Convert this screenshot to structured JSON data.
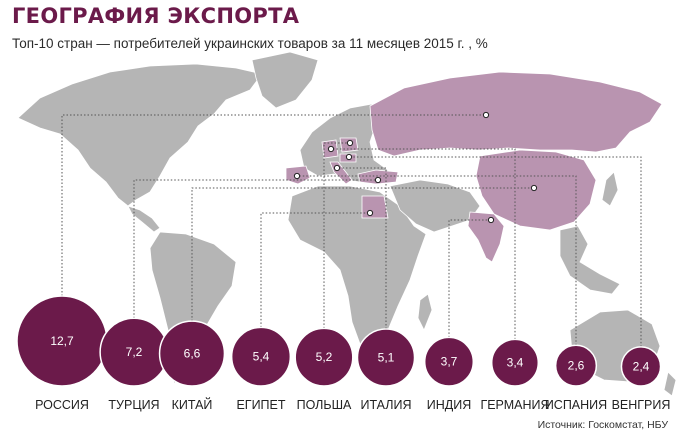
{
  "header": {
    "title": "ГЕОГРАФИЯ ЭКСПОРТА",
    "subtitle": "Топ-10 стран — потребителей украинских товаров за 11 месяцев 2015 г. , %"
  },
  "footer": {
    "source": "Источник: Госкомстат, НБУ"
  },
  "colors": {
    "bubble": "#6b1a4a",
    "land": "#b5b5b5",
    "land_highlight": "#b994b0",
    "leader_line": "#555555"
  },
  "chart_data": {
    "type": "bubble-map",
    "unit": "%",
    "categories": [
      "РОССИЯ",
      "ТУРЦИЯ",
      "КИТАЙ",
      "ЕГИПЕТ",
      "ПОЛЬША",
      "ИТАЛИЯ",
      "ИНДИЯ",
      "ГЕРМАНИЯ",
      "ИСПАНИЯ",
      "ВЕНГРИЯ"
    ],
    "values": [
      12.7,
      7.2,
      6.6,
      5.4,
      5.2,
      5.1,
      3.7,
      3.4,
      2.6,
      2.4
    ],
    "value_labels": [
      "12,7",
      "7,2",
      "6,6",
      "5,4",
      "5,2",
      "5,1",
      "3,7",
      "3,4",
      "2,6",
      "2,4"
    ]
  }
}
